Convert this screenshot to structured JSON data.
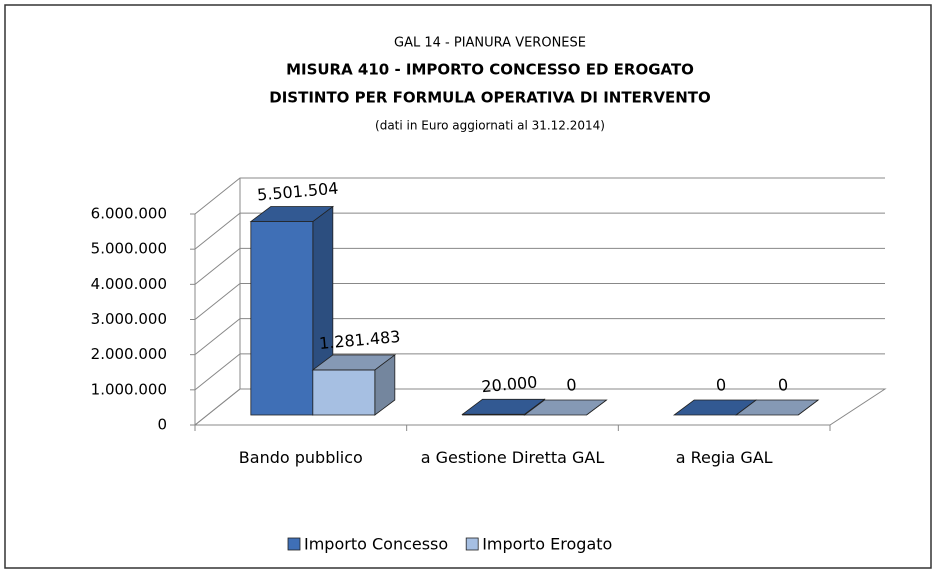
{
  "chart_data": {
    "type": "bar3d",
    "title": [
      "GAL 14 - PIANURA VERONESE",
      "MISURA 410 - IMPORTO CONCESSO ED EROGATO",
      "DISTINTO PER FORMULA OPERATIVA DI INTERVENTO"
    ],
    "subtitle": "(dati in Euro aggiornati al 31.12.2014)",
    "categories": [
      "Bando pubblico",
      "a Gestione Diretta GAL",
      "a Regia GAL"
    ],
    "series": [
      {
        "name": "Importo Concesso",
        "color": "#3f6fb6",
        "values": [
          5501504,
          20000,
          0
        ],
        "value_labels": [
          "5.501.504",
          "20.000",
          "0"
        ]
      },
      {
        "name": "Importo Erogato",
        "color": "#a6bfe2",
        "values": [
          1281483,
          0,
          0
        ],
        "value_labels": [
          "1.281.483",
          "0",
          "0"
        ]
      }
    ],
    "ylim": [
      0,
      6000000
    ],
    "yticks": [
      0,
      {
        "value": 1000000,
        "label": "1.000.000"
      },
      {
        "value": 2000000,
        "label": "2.000.000"
      },
      {
        "value": 3000000,
        "label": "3.000.000"
      },
      {
        "value": 4000000,
        "label": "4.000.000"
      },
      {
        "value": 5000000,
        "label": "5.000.000"
      },
      {
        "value": 6000000,
        "label": "6.000.000"
      }
    ],
    "grid": true,
    "legend": "bottom"
  }
}
